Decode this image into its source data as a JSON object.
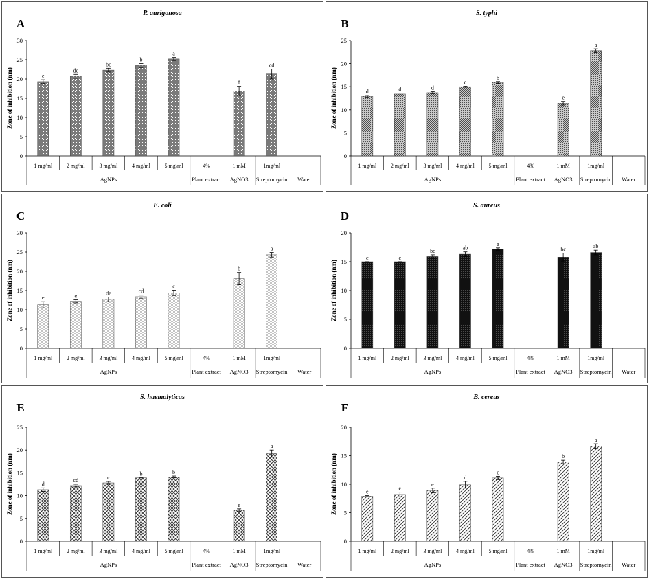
{
  "chart_data": [
    {
      "type": "bar",
      "panel_label": "A",
      "title": "P. aurigonosa",
      "ylabel": "Zone of inhibition (nm)",
      "ylim": [
        0,
        30
      ],
      "yticks": [
        0,
        5,
        10,
        15,
        20,
        25,
        30
      ],
      "categories": [
        "1 mg/ml",
        "2 mg/ml",
        "3 mg/ml",
        "4 mg/ml",
        "5 mg/ml",
        "4%",
        "1 mM",
        "1mg/ml",
        ""
      ],
      "groups": [
        "AgNPs",
        "Plant extract",
        "AgNO3",
        "Streptomycin",
        "Water"
      ],
      "values": [
        19.3,
        20.7,
        22.3,
        23.5,
        25.2,
        null,
        16.9,
        21.3,
        null
      ],
      "errors": [
        0.5,
        0.5,
        0.5,
        0.5,
        0.4,
        null,
        1.2,
        1.3,
        null
      ],
      "letters": [
        "e",
        "de",
        "bc",
        "b",
        "a",
        "",
        "f",
        "cd",
        ""
      ],
      "pattern": "dots-gray"
    },
    {
      "type": "bar",
      "panel_label": "B",
      "title": "S. typhi",
      "ylabel": "Zone of inhibition (nm)",
      "ylim": [
        0,
        25
      ],
      "yticks": [
        0,
        5,
        10,
        15,
        20,
        25
      ],
      "categories": [
        "1 mg/ml",
        "2 mg/ml",
        "3 mg/ml",
        "4 mg/ml",
        "5 mg/ml",
        "4%",
        "1 mM",
        "1mg/ml",
        ""
      ],
      "groups": [
        "AgNPs",
        "Plant extract",
        "AgNO3",
        "Streptomycin",
        "Water"
      ],
      "values": [
        12.9,
        13.4,
        13.7,
        15.0,
        15.9,
        null,
        11.4,
        22.8,
        null
      ],
      "errors": [
        0.2,
        0.2,
        0.2,
        0.1,
        0.2,
        null,
        0.4,
        0.4,
        null
      ],
      "letters": [
        "d",
        "d",
        "d",
        "c",
        "b",
        "",
        "e",
        "a",
        ""
      ],
      "pattern": "diag-dense"
    },
    {
      "type": "bar",
      "panel_label": "C",
      "title": "E.  coli",
      "ylabel": "Zone of inhibition (nm)",
      "ylim": [
        0,
        30
      ],
      "yticks": [
        0,
        5,
        10,
        15,
        20,
        25,
        30
      ],
      "categories": [
        "1 mg/ml",
        "2 mg/ml",
        "3 mg/ml",
        "4 mg/ml",
        "5 mg/ml",
        "4%",
        "1 mM",
        "1mg/ml",
        ""
      ],
      "groups": [
        "AgNPs",
        "Plant extract",
        "AgNO3",
        "Streptomycin",
        "Water"
      ],
      "values": [
        11.3,
        12.2,
        12.7,
        13.4,
        14.4,
        null,
        18.1,
        24.3,
        null
      ],
      "errors": [
        0.8,
        0.4,
        0.6,
        0.4,
        0.7,
        null,
        1.6,
        0.6,
        null
      ],
      "letters": [
        "e",
        "e",
        "de",
        "cd",
        "c",
        "",
        "b",
        "a",
        ""
      ],
      "pattern": "dash-light"
    },
    {
      "type": "bar",
      "panel_label": "D",
      "title": "S. aureus",
      "ylabel": "Zone of inhibition (nm)",
      "ylim": [
        0,
        20
      ],
      "yticks": [
        0,
        5,
        10,
        15,
        20
      ],
      "categories": [
        "1 mg/ml",
        "2 mg/ml",
        "3 mg/ml",
        "4 mg/ml",
        "5 mg/ml",
        "4%",
        "1 mM",
        "1mg/ml",
        ""
      ],
      "groups": [
        "AgNPs",
        "Plant extract",
        "AgNO3",
        "Streptomycin",
        "Water"
      ],
      "values": [
        15.0,
        15.0,
        15.9,
        16.3,
        17.2,
        null,
        15.8,
        16.6,
        null
      ],
      "errors": [
        0.0,
        0.0,
        0.3,
        0.4,
        0.2,
        null,
        0.7,
        0.4,
        null
      ],
      "letters": [
        "c",
        "c",
        "bc",
        "ab",
        "a",
        "",
        "bc",
        "ab",
        ""
      ],
      "pattern": "dots-dark"
    },
    {
      "type": "bar",
      "panel_label": "E",
      "title": "S. haemolyticus",
      "ylabel": "Zone of inhibition  (nm)",
      "ylim": [
        0,
        25
      ],
      "yticks": [
        0,
        5,
        10,
        15,
        20,
        25
      ],
      "categories": [
        "1 mg/ml",
        "2 mg/ml",
        "3 mg/ml",
        "4 mg/ml",
        "5 mg/ml",
        "4%",
        "1 mM",
        "1mg/ml",
        ""
      ],
      "groups": [
        "AgNPs",
        "Plant extract",
        "AgNO3",
        "Streptomycin",
        "Water"
      ],
      "values": [
        11.3,
        12.2,
        12.8,
        13.9,
        14.1,
        null,
        6.8,
        19.2,
        null
      ],
      "errors": [
        0.4,
        0.3,
        0.3,
        0.0,
        0.2,
        null,
        0.3,
        0.8,
        null
      ],
      "letters": [
        "d",
        "cd",
        "c",
        "b",
        "b",
        "",
        "e",
        "a",
        ""
      ],
      "pattern": "crosshatch"
    },
    {
      "type": "bar",
      "panel_label": "F",
      "title": "B. cereus",
      "ylabel": "Zone of inhibition  (nm)",
      "ylim": [
        0,
        20
      ],
      "yticks": [
        0,
        5,
        10,
        15,
        20
      ],
      "categories": [
        "1 mg/ml",
        "2 mg/ml",
        "3 mg/ml",
        "4 mg/ml",
        "5 mg/ml",
        "4%",
        "1 mM",
        "1mg/ml",
        ""
      ],
      "groups": [
        "AgNPs",
        "Plant extract",
        "AgNO3",
        "Streptomycin",
        "Water"
      ],
      "values": [
        7.9,
        8.2,
        8.9,
        9.9,
        11.1,
        null,
        13.9,
        16.7,
        null
      ],
      "errors": [
        0.1,
        0.4,
        0.4,
        0.6,
        0.3,
        null,
        0.3,
        0.4,
        null
      ],
      "letters": [
        "e",
        "e",
        "e",
        "d",
        "c",
        "",
        "b",
        "a",
        ""
      ],
      "pattern": "diag-wide"
    }
  ]
}
